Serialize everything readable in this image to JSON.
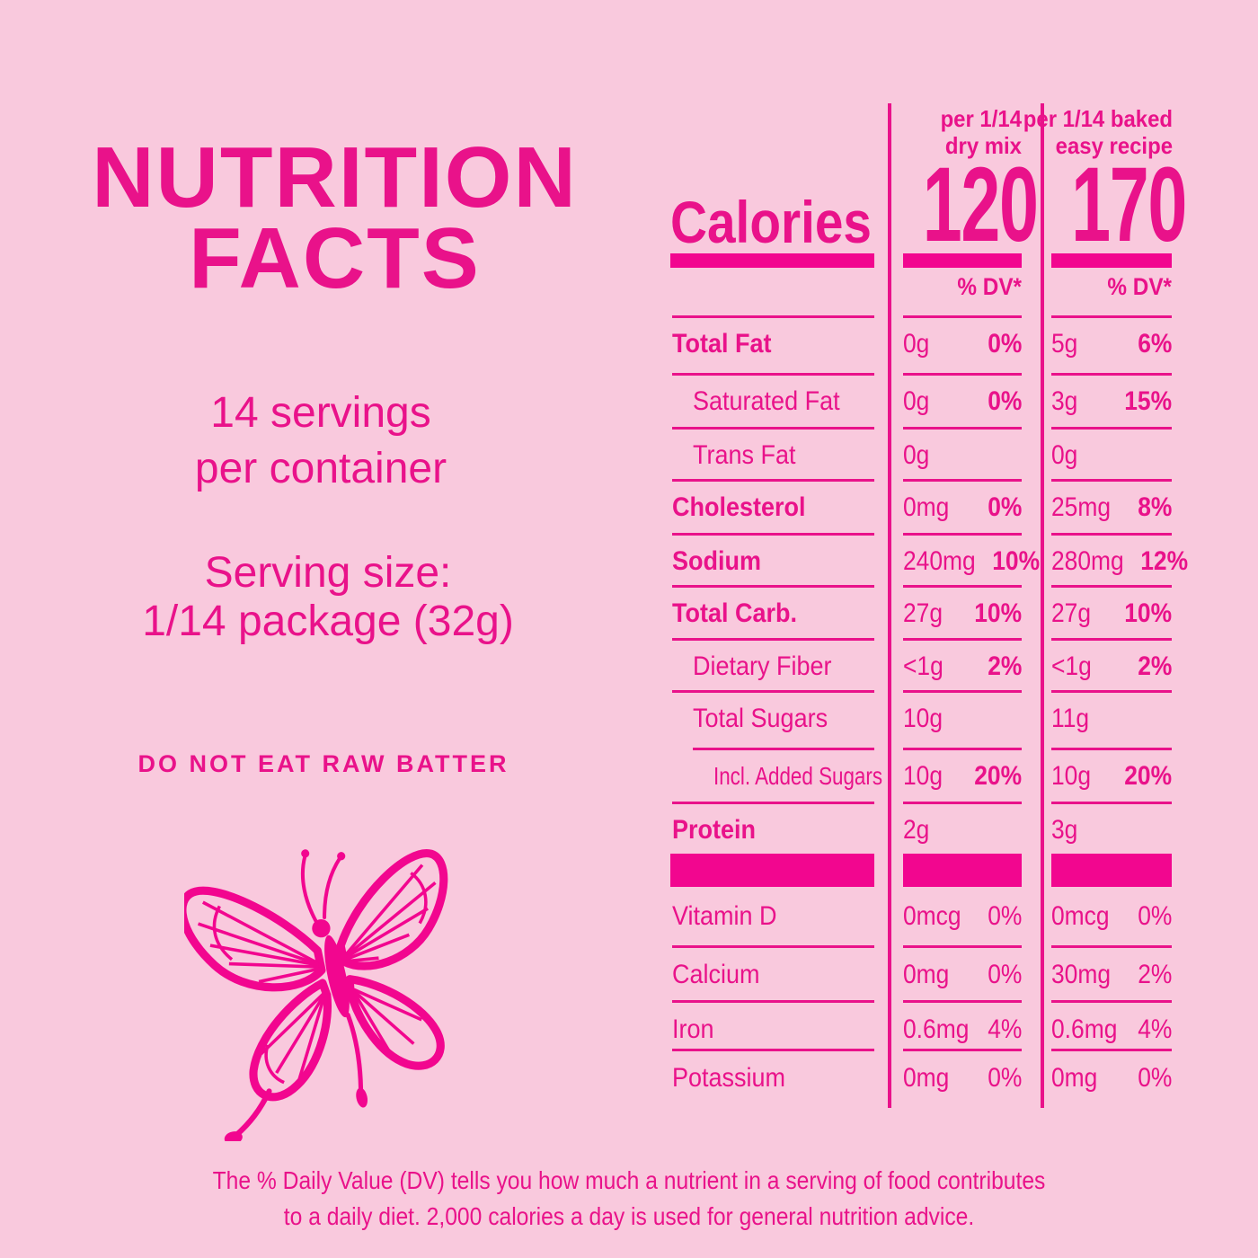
{
  "colors": {
    "background": "#F9C9DD",
    "magenta": "#E9128A",
    "bright_magenta": "#F2068F"
  },
  "left": {
    "title_line1": "NUTRITION",
    "title_line2": "FACTS",
    "servings_line1": "14 servings",
    "servings_line2": "per container",
    "serving_size_line1": "Serving size:",
    "serving_size_line2": "1/14 package (32g)",
    "warning": "DO NOT EAT RAW BATTER",
    "butterfly_icon": "butterfly-illustration"
  },
  "footnote": {
    "line1": "The % Daily Value (DV) tells you how much a nutrient in a serving of food contributes",
    "line2": "to a daily diet. 2,000 calories a day is used for general nutrition advice."
  },
  "table": {
    "calories_label": "Calories",
    "columns": [
      {
        "header_line1": "per 1/14",
        "header_line2": "dry mix",
        "calories": "120",
        "dv_header": "% DV*"
      },
      {
        "header_line1": "per 1/14 baked",
        "header_line2": "easy recipe",
        "calories": "170",
        "dv_header": "% DV*"
      }
    ],
    "rows": [
      {
        "label": "Total Fat",
        "bold": true,
        "indent": 0,
        "dry_amount": "0g",
        "dry_dv": "0%",
        "baked_amount": "5g",
        "baked_dv": "6%"
      },
      {
        "label": "Saturated Fat",
        "bold": false,
        "indent": 1,
        "dry_amount": "0g",
        "dry_dv": "0%",
        "baked_amount": "3g",
        "baked_dv": "15%"
      },
      {
        "label": "Trans Fat",
        "bold": false,
        "indent": 1,
        "dry_amount": "0g",
        "dry_dv": "",
        "baked_amount": "0g",
        "baked_dv": ""
      },
      {
        "label": "Cholesterol",
        "bold": true,
        "indent": 0,
        "dry_amount": "0mg",
        "dry_dv": "0%",
        "baked_amount": "25mg",
        "baked_dv": "8%"
      },
      {
        "label": "Sodium",
        "bold": true,
        "indent": 0,
        "dry_amount": "240mg",
        "dry_dv": "10%",
        "baked_amount": "280mg",
        "baked_dv": "12%"
      },
      {
        "label": "Total Carb.",
        "bold": true,
        "indent": 0,
        "dry_amount": "27g",
        "dry_dv": "10%",
        "baked_amount": "27g",
        "baked_dv": "10%"
      },
      {
        "label": "Dietary Fiber",
        "bold": false,
        "indent": 1,
        "dry_amount": "<1g",
        "dry_dv": "2%",
        "baked_amount": "<1g",
        "baked_dv": "2%"
      },
      {
        "label": "Total Sugars",
        "bold": false,
        "indent": 1,
        "dry_amount": "10g",
        "dry_dv": "",
        "baked_amount": "11g",
        "baked_dv": ""
      },
      {
        "label": "Incl. Added Sugars",
        "bold": false,
        "indent": 2,
        "dry_amount": "10g",
        "dry_dv": "20%",
        "baked_amount": "10g",
        "baked_dv": "20%"
      },
      {
        "label": "Protein",
        "bold": true,
        "indent": 0,
        "dry_amount": "2g",
        "dry_dv": "",
        "baked_amount": "3g",
        "baked_dv": ""
      }
    ],
    "vitamin_rows": [
      {
        "label": "Vitamin D",
        "bold": false,
        "indent": 0,
        "dry_amount": "0mcg",
        "dry_dv": "0%",
        "baked_amount": "0mcg",
        "baked_dv": "0%"
      },
      {
        "label": "Calcium",
        "bold": false,
        "indent": 0,
        "dry_amount": "0mg",
        "dry_dv": "0%",
        "baked_amount": "30mg",
        "baked_dv": "2%"
      },
      {
        "label": "Iron",
        "bold": false,
        "indent": 0,
        "dry_amount": "0.6mg",
        "dry_dv": "4%",
        "baked_amount": "0.6mg",
        "baked_dv": "4%"
      },
      {
        "label": "Potassium",
        "bold": false,
        "indent": 0,
        "dry_amount": "0mg",
        "dry_dv": "0%",
        "baked_amount": "0mg",
        "baked_dv": "0%"
      }
    ]
  }
}
